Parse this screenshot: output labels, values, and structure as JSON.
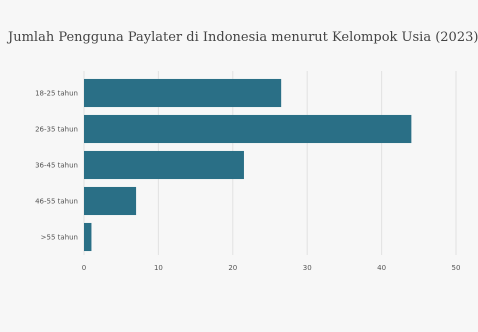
{
  "chart_data": {
    "type": "bar",
    "orientation": "horizontal",
    "title": "Jumlah Pengguna Paylater di Indonesia menurut Kelompok Usia (2023)",
    "categories": [
      "18-25 tahun",
      "26-35 tahun",
      "36-45 tahun",
      "46-55 tahun",
      ">55 tahun"
    ],
    "values": [
      26.5,
      44,
      21.5,
      7,
      1
    ],
    "xlabel": "",
    "ylabel": "",
    "xlim": [
      0,
      50
    ],
    "xticks": [
      "0",
      "10",
      "20",
      "30",
      "40",
      "50"
    ],
    "grid": true,
    "bar_color": "#2a6f86"
  }
}
